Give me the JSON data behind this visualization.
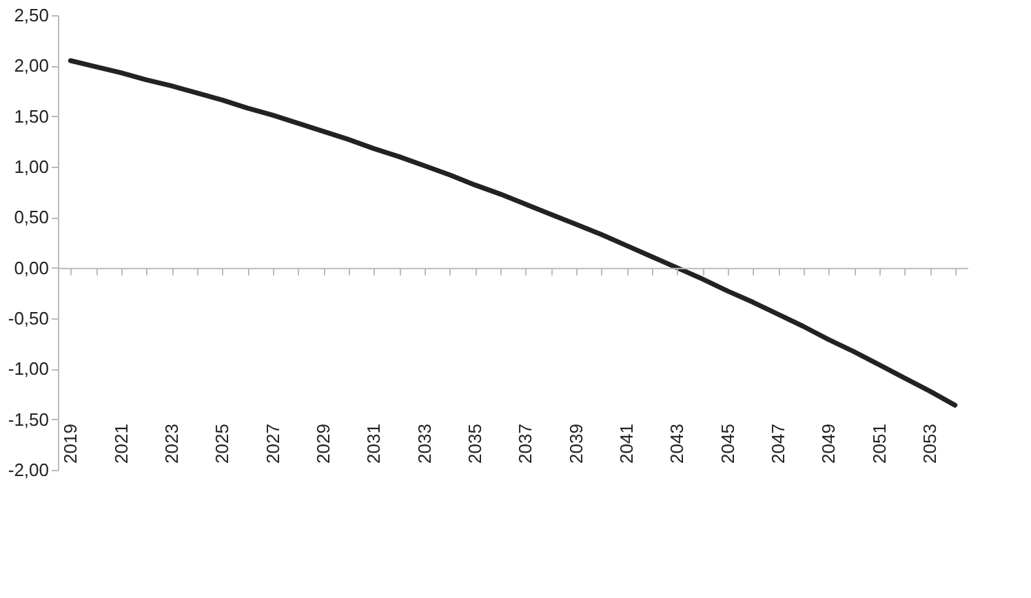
{
  "chart_data": {
    "type": "line",
    "categories": [
      "2019",
      null,
      "2021",
      null,
      "2023",
      null,
      "2025",
      null,
      "2027",
      null,
      "2029",
      null,
      "2031",
      null,
      "2033",
      null,
      "2035",
      null,
      "2037",
      null,
      "2039",
      null,
      "2041",
      null,
      "2043",
      null,
      "2045",
      null,
      "2047",
      null,
      "2049",
      null,
      "2051",
      null,
      "2053",
      null
    ],
    "series": [
      {
        "color": "#222222",
        "values": [
          2.05,
          1.99,
          1.93,
          1.86,
          1.8,
          1.73,
          1.66,
          1.58,
          1.51,
          1.43,
          1.35,
          1.27,
          1.18,
          1.1,
          1.01,
          0.92,
          0.82,
          0.73,
          0.63,
          0.53,
          0.43,
          0.33,
          0.22,
          0.11,
          0.0,
          -0.11,
          -0.23,
          -0.34,
          -0.46,
          -0.58,
          -0.71,
          -0.83,
          -0.96,
          -1.09,
          -1.22,
          -1.36
        ]
      }
    ],
    "ylim": [
      -2.0,
      2.5
    ],
    "yticks": [
      {
        "value": -2.0,
        "label": "-2,00"
      },
      {
        "value": -1.5,
        "label": "-1,50"
      },
      {
        "value": -1.0,
        "label": "-1,00"
      },
      {
        "value": -0.5,
        "label": "-0,50"
      },
      {
        "value": 0.0,
        "label": "0,00"
      },
      {
        "value": 0.5,
        "label": "0,50"
      },
      {
        "value": 1.0,
        "label": "1,00"
      },
      {
        "value": 1.5,
        "label": "1,50"
      },
      {
        "value": 2.0,
        "label": "2,00"
      },
      {
        "value": 2.5,
        "label": "2,50"
      }
    ],
    "marker": "none",
    "line_style": "solid"
  }
}
